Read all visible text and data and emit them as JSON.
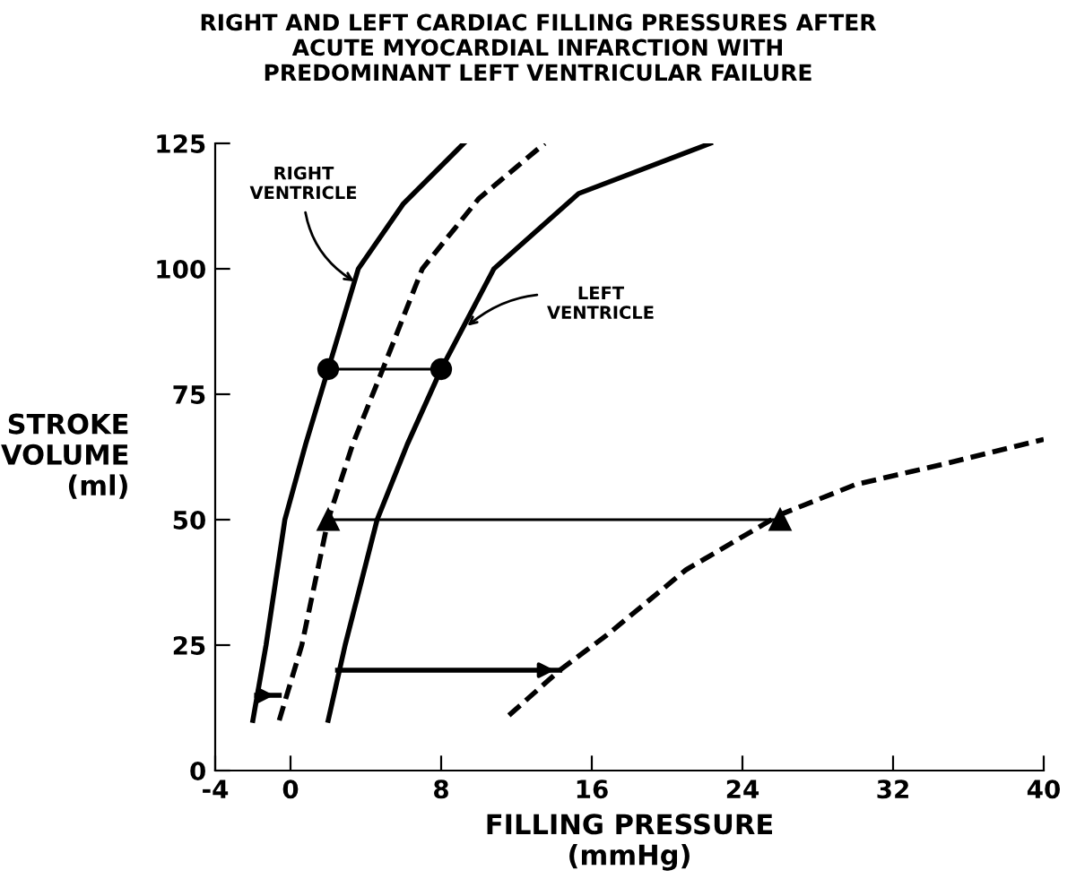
{
  "chart_data": {
    "type": "line",
    "title": "RIGHT AND LEFT CARDIAC FILLING PRESSURES AFTER\nACUTE MYOCARDIAL INFARCTION WITH\nPREDOMINANT LEFT VENTRICULAR FAILURE",
    "xlabel": "FILLING PRESSURE\n(mmHg)",
    "ylabel": "STROKE\nVOLUME\n(ml)",
    "xlim": [
      -4,
      40
    ],
    "ylim": [
      0,
      125
    ],
    "xticks": [
      -4,
      0,
      8,
      16,
      24,
      32,
      40
    ],
    "yticks": [
      0,
      25,
      50,
      75,
      100,
      125
    ],
    "grid": false,
    "legend": false,
    "series": [
      {
        "color": "#000000",
        "line_style": "solid",
        "marker": "none",
        "x": [
          -2,
          -1.3,
          -0.3,
          0.8,
          2,
          3.6,
          6,
          9.2
        ],
        "values": [
          10,
          25,
          50,
          65,
          80,
          100,
          113,
          125
        ]
      },
      {
        "color": "#000000",
        "line_style": "dashed",
        "marker": "none",
        "x": [
          -0.6,
          0.6,
          2,
          3.3,
          4.9,
          7,
          10,
          13.5
        ],
        "values": [
          10,
          25,
          50,
          65,
          80,
          100,
          114,
          125
        ]
      },
      {
        "color": "#000000",
        "line_style": "solid",
        "marker": "none",
        "x": [
          2,
          2.9,
          4.6,
          6.2,
          8,
          10.8,
          15.3,
          22.3
        ],
        "values": [
          10,
          25,
          50,
          65,
          80,
          100,
          115,
          125
        ]
      },
      {
        "color": "#000000",
        "line_style": "dashed",
        "marker": "none",
        "x": [
          11.6,
          14.3,
          16.8,
          21,
          26,
          30,
          34.6,
          40
        ],
        "values": [
          11,
          20,
          27,
          40,
          51,
          57,
          61,
          66
        ]
      },
      {
        "color": "#000000",
        "line_style": "solid",
        "marker": "none",
        "x": [
          2,
          8
        ],
        "values": [
          80,
          80
        ]
      },
      {
        "type": "scatter",
        "color": "#000000",
        "marker": "circle",
        "x": [
          2,
          8
        ],
        "values": [
          80,
          80
        ]
      },
      {
        "color": "#000000",
        "line_style": "solid",
        "marker": "triangle",
        "x": [
          2,
          26
        ],
        "values": [
          50,
          50
        ]
      },
      {
        "color": "#000000",
        "line_style": "solid",
        "marker": "none",
        "x": [
          2.5,
          14.3
        ],
        "values": [
          20,
          20
        ]
      },
      {
        "color": "#000000",
        "line_style": "solid",
        "marker": "none",
        "x": [
          -1.8,
          -0.6
        ],
        "values": [
          15,
          15
        ]
      }
    ],
    "annotations": [
      {
        "text": "RIGHT\nVENTRICLE",
        "x": 3.6,
        "y": 97
      },
      {
        "text": "LEFT\nVENTRICLE",
        "x": 9.2,
        "y": 88
      }
    ]
  }
}
